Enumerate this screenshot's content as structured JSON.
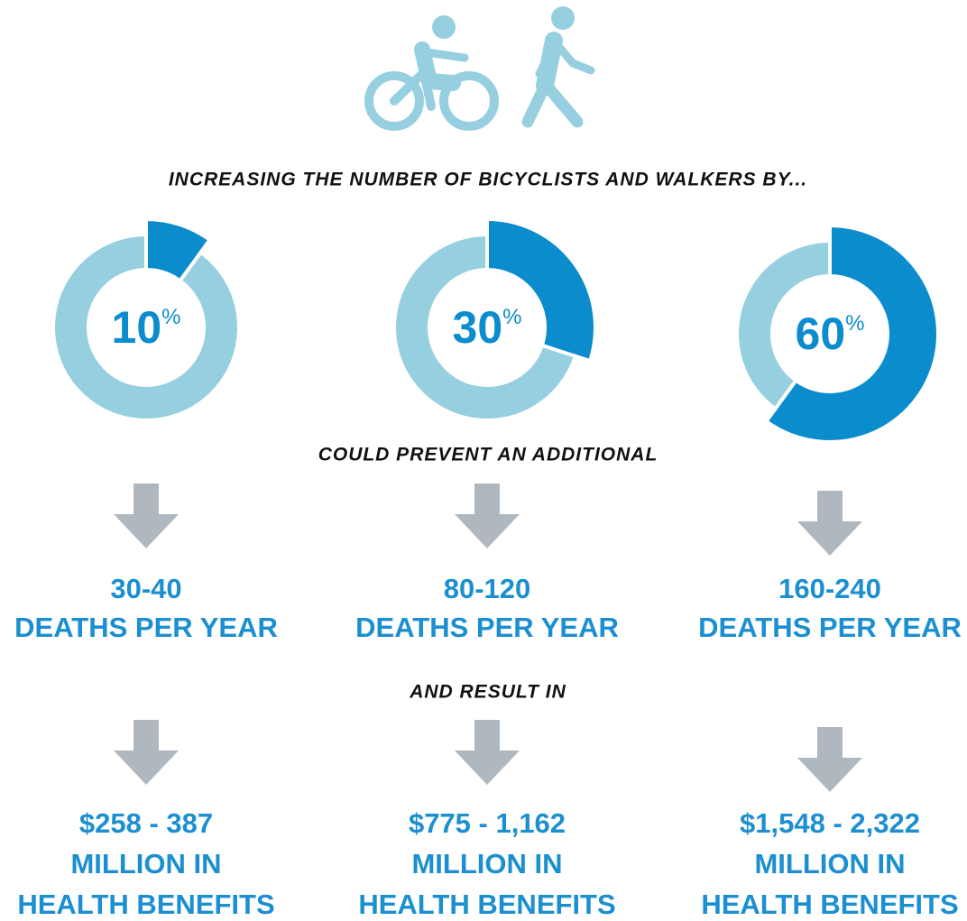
{
  "headings": {
    "intro": "INCREASING THE NUMBER OF BICYCLISTS AND WALKERS BY...",
    "middle": "COULD PREVENT AN ADDITIONAL",
    "final": "AND RESULT IN"
  },
  "unit": "%",
  "columns": [
    {
      "percent": 10,
      "deaths": "30-40",
      "deaths_label": "DEATHS PER YEAR",
      "benefit": "$258 - 387",
      "benefit_lines": [
        "MILLION IN",
        "HEALTH BENEFITS"
      ]
    },
    {
      "percent": 30,
      "deaths": "80-120",
      "deaths_label": "DEATHS PER YEAR",
      "benefit": "$775 - 1,162",
      "benefit_lines": [
        "MILLION IN",
        "HEALTH BENEFITS"
      ]
    },
    {
      "percent": 60,
      "deaths": "160-240",
      "deaths_label": "DEATHS PER YEAR",
      "benefit": "$1,548 - 2,322",
      "benefit_lines": [
        "MILLION IN",
        "HEALTH BENEFITS"
      ]
    }
  ]
}
